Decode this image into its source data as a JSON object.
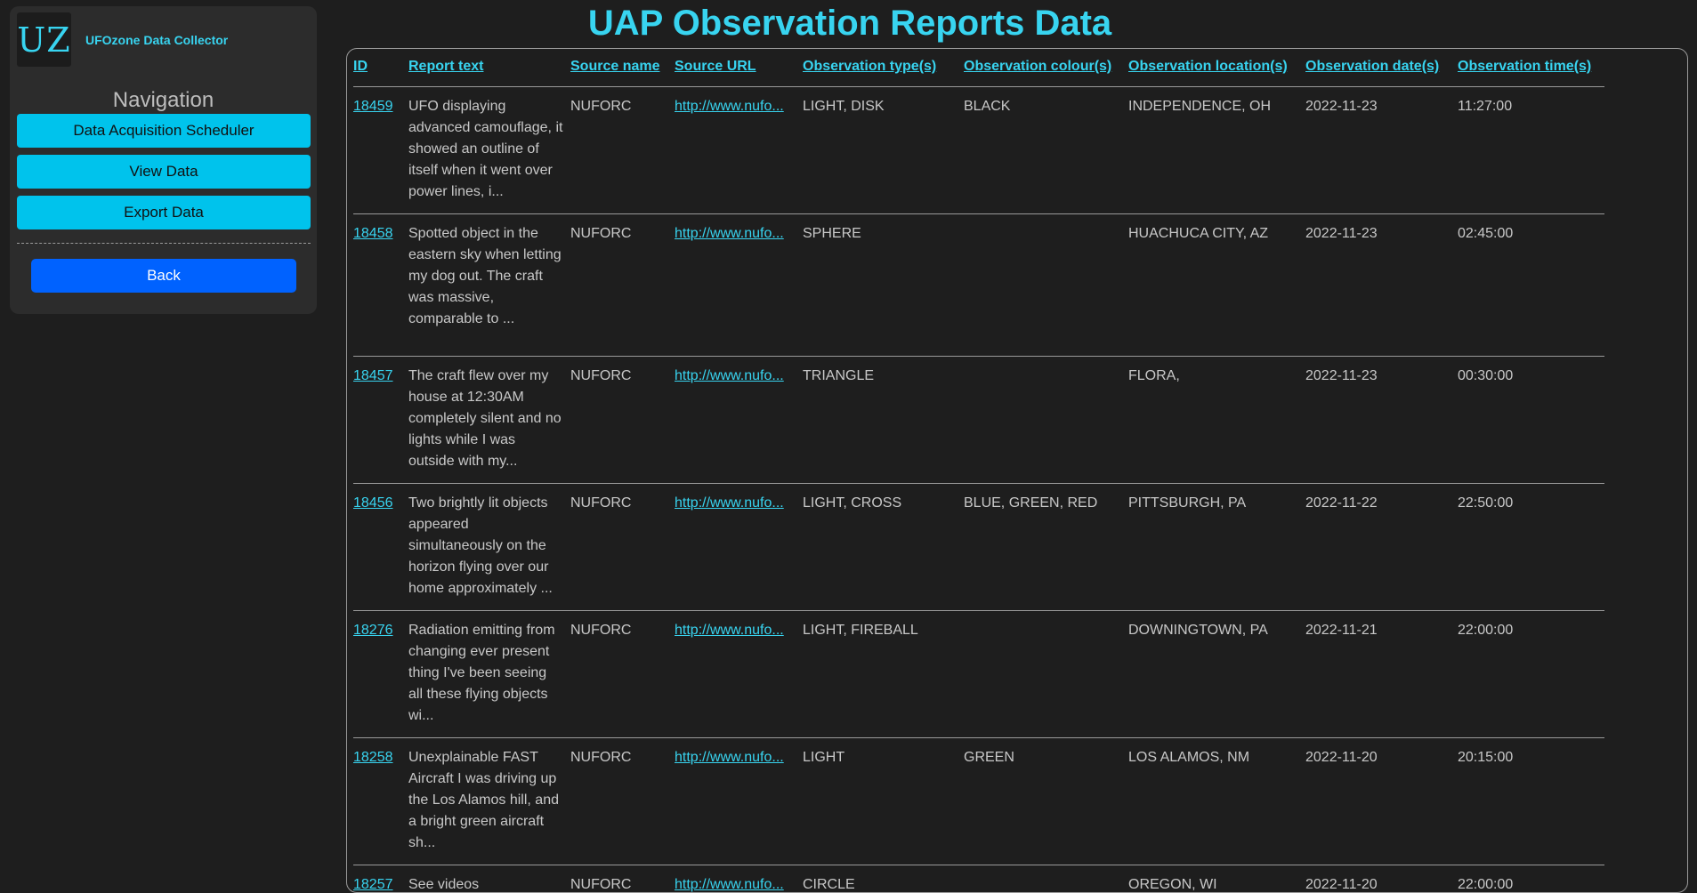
{
  "sidebar": {
    "logo_text": "UZ",
    "brand_name": "UFOzone Data Collector",
    "nav_title": "Navigation",
    "buttons": [
      "Data Acquisition Scheduler",
      "View Data",
      "Export Data"
    ],
    "back_label": "Back"
  },
  "page": {
    "title": "UAP Observation Reports Data"
  },
  "table": {
    "headers": [
      "ID",
      "Report text",
      "Source name",
      "Source URL",
      "Observation type(s)",
      "Observation colour(s)",
      "Observation location(s)",
      "Observation date(s)",
      "Observation time(s)"
    ],
    "rows": [
      {
        "id": "18459",
        "text": "UFO displaying advanced camouflage, it showed an outline of itself when it went over power lines, i...",
        "source": "NUFORC",
        "url": "http://www.nufo...",
        "type": "LIGHT, DISK",
        "colour": "BLACK",
        "location": "INDEPENDENCE, OH",
        "date": "2022-11-23",
        "time": "11:27:00"
      },
      {
        "id": "18458",
        "text": "Spotted object in the eastern sky when letting my dog out. The craft was massive, comparable to ...",
        "source": "NUFORC",
        "url": "http://www.nufo...",
        "type": "SPHERE",
        "colour": "",
        "location": "HUACHUCA CITY, AZ",
        "date": "2022-11-23",
        "time": "02:45:00"
      },
      {
        "id": "18457",
        "text": "The craft flew over my house at 12:30AM completely silent and no lights while I was outside with my...",
        "source": "NUFORC",
        "url": "http://www.nufo...",
        "type": "TRIANGLE",
        "colour": "",
        "location": "FLORA,",
        "date": "2022-11-23",
        "time": "00:30:00"
      },
      {
        "id": "18456",
        "text": "Two brightly lit objects appeared simultaneously on the horizon flying over our home approximately ...",
        "source": "NUFORC",
        "url": "http://www.nufo...",
        "type": "LIGHT, CROSS",
        "colour": "BLUE, GREEN, RED",
        "location": "PITTSBURGH, PA",
        "date": "2022-11-22",
        "time": "22:50:00"
      },
      {
        "id": "18276",
        "text": "Radiation emitting from changing ever present thing I've been seeing all these flying objects wi...",
        "source": "NUFORC",
        "url": "http://www.nufo...",
        "type": "LIGHT, FIREBALL",
        "colour": "",
        "location": "DOWNINGTOWN, PA",
        "date": "2022-11-21",
        "time": "22:00:00"
      },
      {
        "id": "18258",
        "text": "Unexplainable FAST Aircraft I was driving up the Los Alamos hill, and a bright green aircraft sh...",
        "source": "NUFORC",
        "url": "http://www.nufo...",
        "type": "LIGHT",
        "colour": "GREEN",
        "location": "LOS ALAMOS, NM",
        "date": "2022-11-20",
        "time": "20:15:00"
      },
      {
        "id": "18257",
        "text": "See videos",
        "source": "NUFORC",
        "url": "http://www.nufo...",
        "type": "CIRCLE",
        "colour": "",
        "location": "OREGON, WI",
        "date": "2022-11-20",
        "time": "22:00:00"
      }
    ]
  }
}
